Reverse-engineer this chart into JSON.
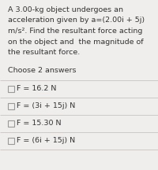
{
  "background_color": "#f0eeec",
  "question_text_lines": [
    "A 3.00-kg object undergoes an",
    "acceleration given by a=(2.00i + 5j)",
    "m/s². Find the resultant force acting",
    "on the object and  the magnitude of",
    "the resultant force."
  ],
  "choose_text": "Choose 2 answers",
  "options": [
    "F = 16.2 N",
    "F = (3i + 15j) N",
    "F = 15.30 N",
    "F = (6i + 15j) N"
  ],
  "text_color": "#333333",
  "divider_color": "#c8c4c0",
  "checkbox_color": "#999999",
  "question_fontsize": 6.8,
  "choose_fontsize": 6.8,
  "option_fontsize": 6.8
}
